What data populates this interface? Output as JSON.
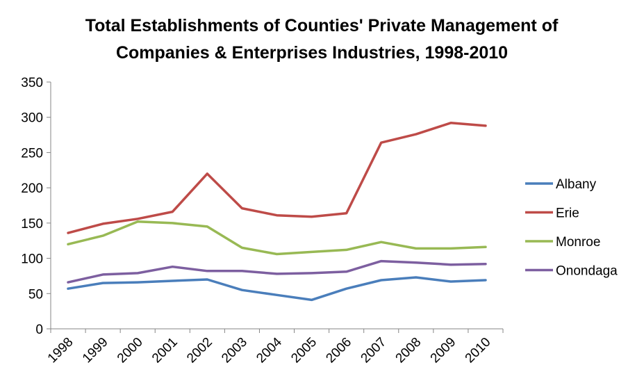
{
  "chart_data": {
    "type": "line",
    "title": "Total Establishments of Counties' Private Management of Companies & Enterprises Industries, 1998-2010",
    "title_lines": [
      "Total Establishments of Counties' Private Management of",
      "Companies & Enterprises Industries, 1998-2010"
    ],
    "xlabel": "",
    "ylabel": "",
    "categories": [
      "1998",
      "1999",
      "2000",
      "2001",
      "2002",
      "2003",
      "2004",
      "2005",
      "2006",
      "2007",
      "2008",
      "2009",
      "2010"
    ],
    "ylim": [
      0,
      350
    ],
    "yticks": [
      0,
      50,
      100,
      150,
      200,
      250,
      300,
      350
    ],
    "grid": false,
    "legend_position": "right",
    "series": [
      {
        "name": "Albany",
        "color": "#4a7ebb",
        "values": [
          57,
          65,
          66,
          68,
          70,
          55,
          48,
          41,
          57,
          69,
          73,
          67,
          69
        ]
      },
      {
        "name": "Erie",
        "color": "#be4b48",
        "values": [
          136,
          149,
          156,
          166,
          220,
          171,
          161,
          159,
          164,
          264,
          276,
          292,
          288
        ]
      },
      {
        "name": "Monroe",
        "color": "#98b954",
        "values": [
          120,
          132,
          152,
          150,
          145,
          115,
          106,
          109,
          112,
          123,
          114,
          114,
          116
        ]
      },
      {
        "name": "Onondaga",
        "color": "#7d5fa0",
        "values": [
          66,
          77,
          79,
          88,
          82,
          82,
          78,
          79,
          81,
          96,
          94,
          91,
          92
        ]
      }
    ]
  }
}
